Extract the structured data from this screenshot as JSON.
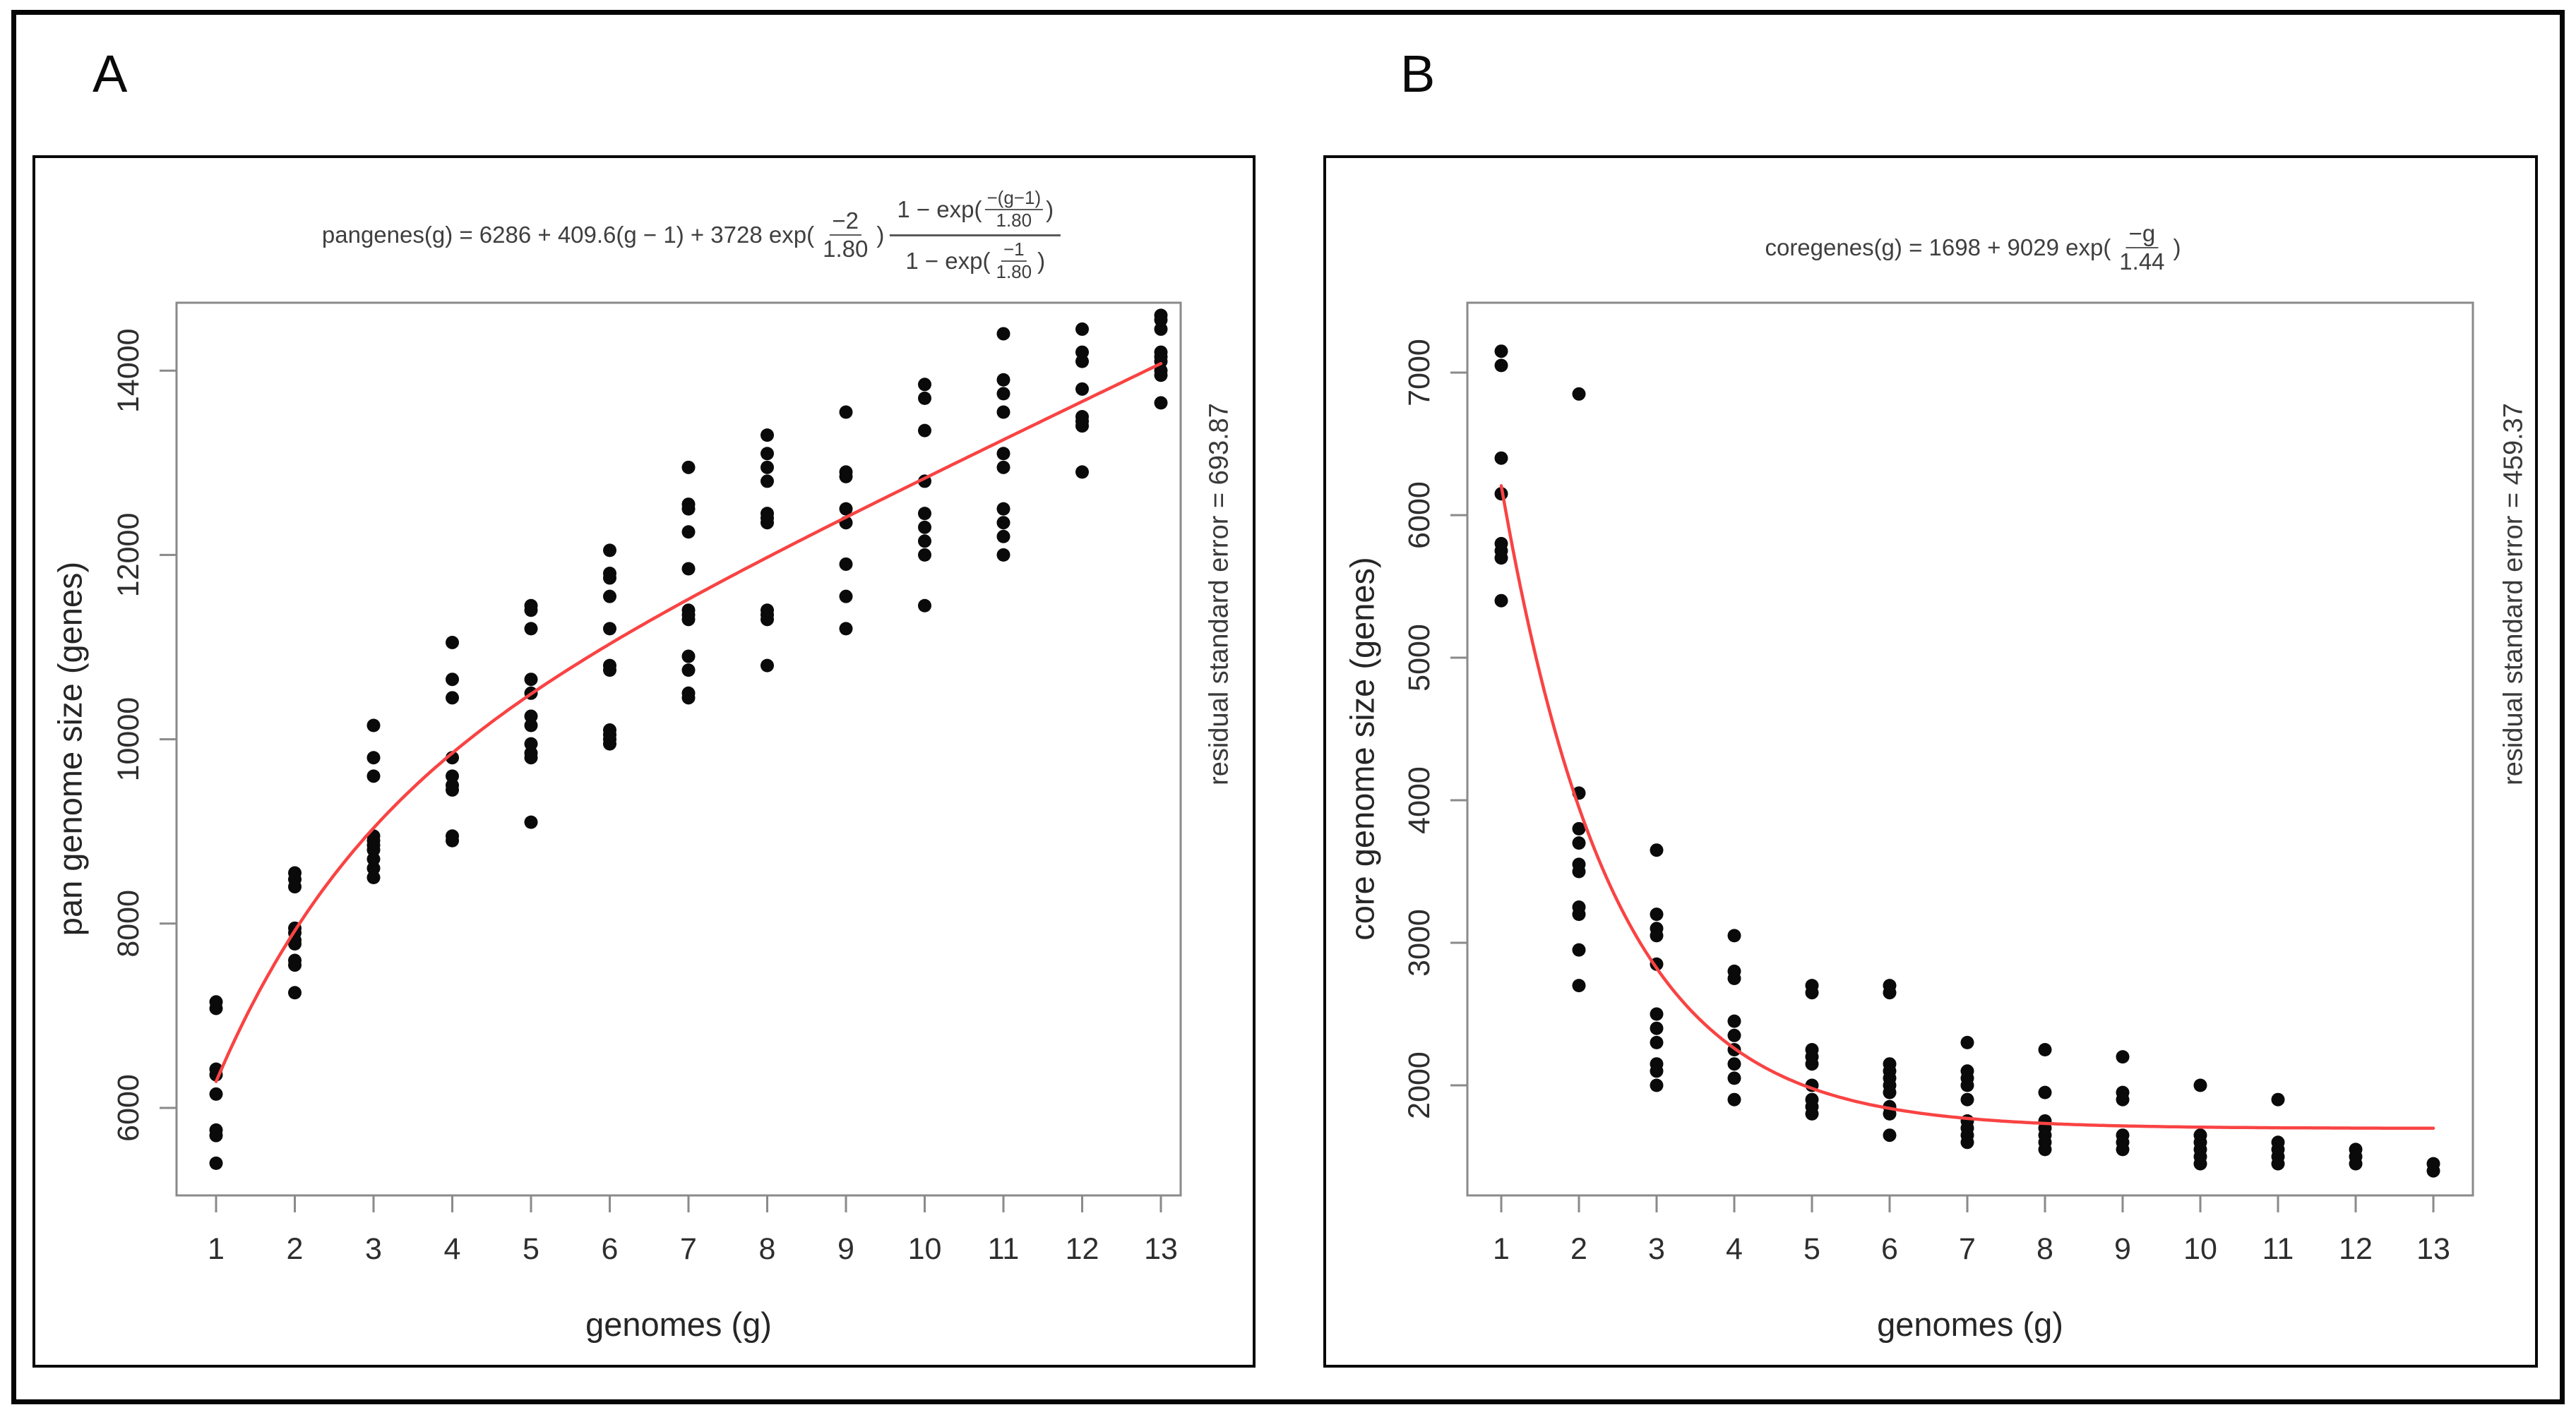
{
  "figure": {
    "panel_a_label": "A",
    "panel_b_label": "B"
  },
  "chart_data": [
    {
      "type": "scatter",
      "panel": "A",
      "xlabel": "genomes (g)",
      "ylabel": "pan genome size (genes)",
      "right_annotation": "residual standard error = 693.87",
      "x_ticks": [
        1,
        2,
        3,
        4,
        5,
        6,
        7,
        8,
        9,
        10,
        11,
        12,
        13
      ],
      "y_ticks": [
        6000,
        8000,
        10000,
        12000,
        14000
      ],
      "xlim": [
        0.5,
        13.5
      ],
      "ylim": [
        5050,
        14740
      ],
      "grid": false,
      "legend": null,
      "point_color": "#0a0a0a",
      "curve_color": "#f94343",
      "axis_color": "#8a8a8a",
      "formula": {
        "lead": "pangenes(g) = 6286 + 409.6(g − 1) + 3728 exp(",
        "exp_frac_num": "−2",
        "exp_frac_den": "1.80",
        "exp_close": ")",
        "ratio_num_lead": "1 − exp(",
        "ratio_num_frac_num": "−(g−1)",
        "ratio_num_frac_den": "1.80",
        "ratio_num_close": ")",
        "ratio_den_lead": "1 − exp(",
        "ratio_den_frac_num": "−1",
        "ratio_den_frac_den": "1.80",
        "ratio_den_close": ")"
      },
      "curve": {
        "kind": "pan",
        "formula_text": "pangenes(g) = 6286 + 409.6(g-1) + 3728 exp(-2/1.80) (1-exp(-(g-1)/1.80))/(1-exp(-1/1.80))",
        "params": {
          "intercept": 6286,
          "slope": 409.6,
          "amp": 3728,
          "tau": 1.8
        }
      },
      "points": {
        "1": [
          7150,
          7080,
          6420,
          6360,
          6150,
          5760,
          5700,
          5400
        ],
        "2": [
          8550,
          8480,
          8400,
          7950,
          7900,
          7820,
          7780,
          7600,
          7550,
          7250
        ],
        "3": [
          10150,
          9800,
          9600,
          8950,
          8900,
          8850,
          8800,
          8700,
          8600,
          8500
        ],
        "4": [
          11050,
          10650,
          10450,
          9800,
          9600,
          9500,
          9450,
          8950,
          8900
        ],
        "5": [
          11450,
          11400,
          11200,
          10650,
          10500,
          10250,
          10150,
          9950,
          9850,
          9800,
          9100
        ],
        "6": [
          12050,
          11800,
          11750,
          11550,
          11200,
          10800,
          10750,
          10100,
          10050,
          10000,
          9950
        ],
        "7": [
          12950,
          12550,
          12500,
          12250,
          11850,
          11400,
          11350,
          11300,
          10900,
          10750,
          10500,
          10450
        ],
        "8": [
          13300,
          13100,
          12950,
          12800,
          12450,
          12400,
          12350,
          11400,
          11350,
          11300,
          10800
        ],
        "9": [
          13550,
          12900,
          12850,
          12500,
          12350,
          11900,
          11550,
          11200
        ],
        "10": [
          13850,
          13700,
          13350,
          12800,
          12450,
          12300,
          12150,
          12000,
          11450
        ],
        "11": [
          14400,
          13900,
          13750,
          13550,
          13100,
          12950,
          12500,
          12350,
          12200,
          12000
        ],
        "12": [
          14450,
          14200,
          14100,
          13800,
          13500,
          13450,
          13400,
          12900
        ],
        "13": [
          14600,
          14550,
          14450,
          14200,
          14150,
          14100,
          14000,
          13950,
          13650
        ]
      }
    },
    {
      "type": "scatter",
      "panel": "B",
      "xlabel": "genomes (g)",
      "ylabel": "core genome size (genes)",
      "right_annotation": "residual standard error = 459.37",
      "x_ticks": [
        1,
        2,
        3,
        4,
        5,
        6,
        7,
        8,
        9,
        10,
        11,
        12,
        13
      ],
      "y_ticks": [
        2000,
        3000,
        4000,
        5000,
        6000,
        7000
      ],
      "xlim": [
        0.5,
        13.5
      ],
      "ylim": [
        1030,
        7490
      ],
      "grid": false,
      "legend": null,
      "point_color": "#0a0a0a",
      "curve_color": "#f94343",
      "axis_color": "#8a8a8a",
      "formula": {
        "lead": "coregenes(g) = 1698 + 9029 exp(",
        "exp_frac_num": "−g",
        "exp_frac_den": "1.44",
        "exp_close": ")"
      },
      "curve": {
        "kind": "core",
        "formula_text": "coregenes(g) = 1698 + 9029 exp(-g/1.44)",
        "params": {
          "intercept": 1698,
          "amp": 9029,
          "tau": 1.44
        }
      },
      "points": {
        "1": [
          7150,
          7050,
          6400,
          6150,
          5800,
          5750,
          5700,
          5400
        ],
        "2": [
          6850,
          4050,
          3800,
          3700,
          3550,
          3500,
          3250,
          3200,
          2950,
          2700
        ],
        "3": [
          3650,
          3200,
          3100,
          3050,
          2850,
          2500,
          2400,
          2300,
          2150,
          2100,
          2000
        ],
        "4": [
          3050,
          2800,
          2750,
          2450,
          2350,
          2250,
          2150,
          2050,
          1900
        ],
        "5": [
          2700,
          2650,
          2250,
          2200,
          2150,
          2000,
          1900,
          1850,
          1800
        ],
        "6": [
          2700,
          2650,
          2150,
          2100,
          2050,
          2000,
          1950,
          1850,
          1800,
          1650
        ],
        "7": [
          2300,
          2100,
          2050,
          2000,
          1900,
          1750,
          1700,
          1650,
          1600
        ],
        "8": [
          2250,
          1950,
          1750,
          1700,
          1650,
          1600,
          1550
        ],
        "9": [
          2200,
          1950,
          1900,
          1650,
          1600,
          1550
        ],
        "10": [
          2000,
          1650,
          1600,
          1550,
          1500,
          1450
        ],
        "11": [
          1900,
          1600,
          1550,
          1500,
          1450
        ],
        "12": [
          1550,
          1500,
          1450
        ],
        "13": [
          1450,
          1400
        ]
      }
    }
  ]
}
